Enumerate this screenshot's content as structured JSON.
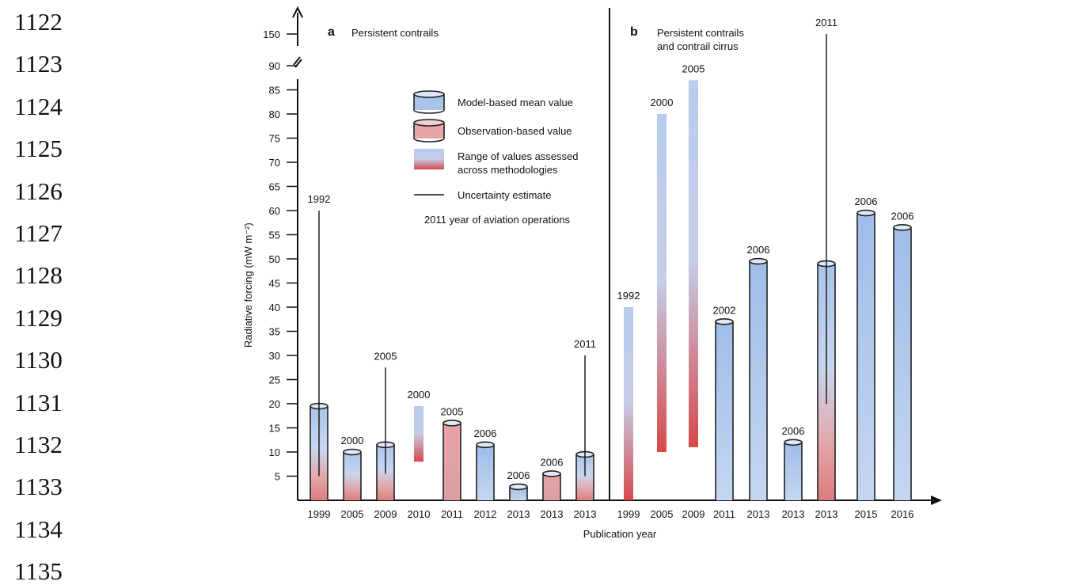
{
  "line_numbers": [
    "1122",
    "1123",
    "1124",
    "1125",
    "1126",
    "1127",
    "1128",
    "1129",
    "1130",
    "1131",
    "1132",
    "1133",
    "1134",
    "1135"
  ],
  "chart_data": {
    "type": "bar",
    "ylabel": "Radiative forcing (mW m⁻²)",
    "xlabel": "Publication year",
    "y_ticks": [
      5,
      10,
      15,
      20,
      25,
      30,
      35,
      40,
      45,
      50,
      55,
      60,
      65,
      70,
      75,
      80,
      85,
      90
    ],
    "y_break_tick": 150,
    "ylim": [
      0,
      92
    ],
    "legend_position": "top-center of panel a",
    "legend": [
      {
        "kind": "model",
        "label": "Model-based mean value"
      },
      {
        "kind": "obs",
        "label": "Observation-based value"
      },
      {
        "kind": "range",
        "label_lines": [
          "Range of values assessed",
          "across methodologies"
        ]
      },
      {
        "kind": "uncert",
        "label": "Uncertainty estimate"
      },
      {
        "kind": "text",
        "label": "2011 year of aviation operations"
      }
    ],
    "colors": {
      "model_top": "#a9c4ea",
      "model_bottom": "#c9d9f2",
      "obs": "#e8a9a8",
      "range_top": "#b9cff0",
      "range_bottom": "#d95a58"
    },
    "panels": [
      {
        "letter": "a",
        "title_lines": [
          "Persistent contrails"
        ],
        "bars": [
          {
            "pub": "1999",
            "ops": "1992",
            "kind": "model",
            "value": 19.5,
            "fade": true,
            "err_low": 5,
            "err_high": 60
          },
          {
            "pub": "2005",
            "ops": "2000",
            "kind": "model",
            "value": 10,
            "fade": true
          },
          {
            "pub": "2009",
            "ops": "2005",
            "kind": "model",
            "value": 11.5,
            "fade": true,
            "err_low": 5.5,
            "err_high": 27.5
          },
          {
            "pub": "2010",
            "ops": "2000",
            "kind": "range",
            "low": 8,
            "high": 19.5
          },
          {
            "pub": "2011",
            "ops": "2005",
            "kind": "obs",
            "value": 16
          },
          {
            "pub": "2012",
            "ops": "2006",
            "kind": "model",
            "value": 11.5
          },
          {
            "pub": "2013",
            "ops": "2006",
            "kind": "model",
            "value": 2.8
          },
          {
            "pub": "2013",
            "ops": "2006",
            "kind": "obs",
            "value": 5.5
          },
          {
            "pub": "2013",
            "ops": "2011",
            "kind": "model",
            "value": 9.5,
            "fade": true,
            "err_low": 5,
            "err_high": 30
          }
        ]
      },
      {
        "letter": "b",
        "title_lines": [
          "Persistent contrails",
          "and contrail cirrus"
        ],
        "bars": [
          {
            "pub": "1999",
            "ops": "1992",
            "kind": "range",
            "low": 0,
            "high": 40
          },
          {
            "pub": "2005",
            "ops": "2000",
            "kind": "range",
            "low": 10,
            "high": 80
          },
          {
            "pub": "2009",
            "ops": "2005",
            "kind": "range",
            "low": 11,
            "high": 87
          },
          {
            "pub": "2011",
            "ops": "2002",
            "kind": "model",
            "value": 37
          },
          {
            "pub": "2013",
            "ops": "2006",
            "kind": "model",
            "value": 49.5
          },
          {
            "pub": "2013",
            "ops": "2006",
            "kind": "model",
            "value": 12
          },
          {
            "pub": "2013",
            "ops": "2011",
            "kind": "model",
            "value": 49,
            "fade": true,
            "err_low": 20,
            "err_high": 150
          },
          {
            "pub": "2015",
            "ops": "2006",
            "kind": "model",
            "value": 59.5
          },
          {
            "pub": "2016",
            "ops": "2006",
            "kind": "model",
            "value": 56.5
          }
        ]
      }
    ]
  }
}
